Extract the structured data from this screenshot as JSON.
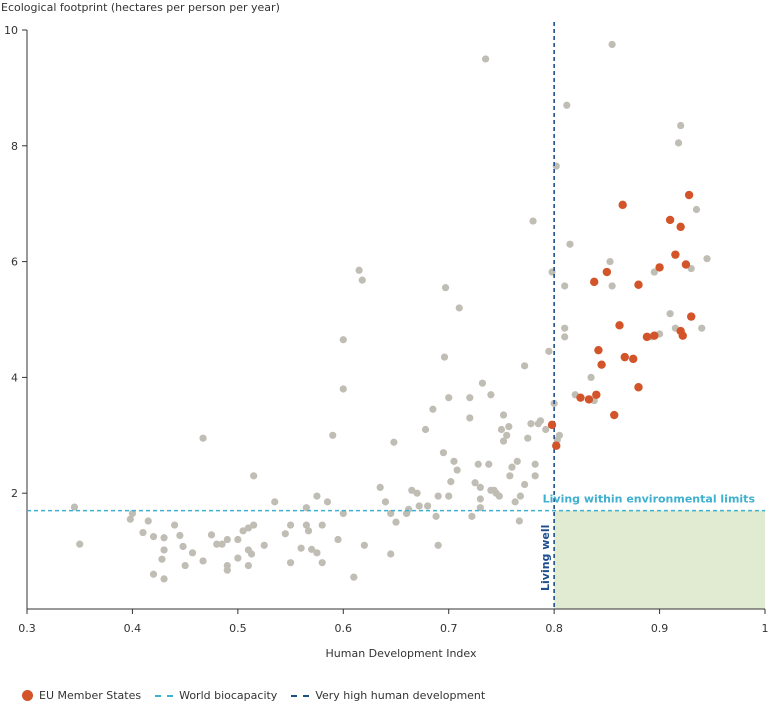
{
  "chart_data": {
    "type": "scatter",
    "ylabel": "Ecological footprint (hectares per person per year)",
    "xlabel": "Human Development Index",
    "xlim": [
      0.3,
      1.0
    ],
    "ylim": [
      0,
      10
    ],
    "x_ticks": [
      "0.3",
      "0.4",
      "0.5",
      "0.6",
      "0.7",
      "0.8",
      "0.9",
      "1"
    ],
    "y_ticks": [
      "2",
      "4",
      "6",
      "8",
      "10"
    ],
    "grid": false,
    "world_biocapacity": 1.7,
    "very_high_hdi": 0.8,
    "annotations": {
      "region_label": "Living within environmental limits",
      "living_well": "Living well"
    },
    "legend": {
      "eu": "EU Member States",
      "biocapacity": "World biocapacity",
      "very_high": "Very high human development"
    },
    "colors": {
      "other": "#bfbdb4",
      "eu": "#d4542a",
      "biocapacity_line": "#3fb0cf",
      "hdi_line": "#1e4f8c",
      "region_fill": "#e1ebd2"
    },
    "series": [
      {
        "name": "",
        "points": [
          [
            0.345,
            1.76
          ],
          [
            0.35,
            1.12
          ],
          [
            0.4,
            1.65
          ],
          [
            0.41,
            1.32
          ],
          [
            0.398,
            1.55
          ],
          [
            0.415,
            1.52
          ],
          [
            0.42,
            1.25
          ],
          [
            0.43,
            1.23
          ],
          [
            0.43,
            1.02
          ],
          [
            0.428,
            0.86
          ],
          [
            0.43,
            0.52
          ],
          [
            0.42,
            0.6
          ],
          [
            0.44,
            1.45
          ],
          [
            0.445,
            1.27
          ],
          [
            0.448,
            1.08
          ],
          [
            0.457,
            0.97
          ],
          [
            0.45,
            0.75
          ],
          [
            0.467,
            2.95
          ],
          [
            0.467,
            0.83
          ],
          [
            0.475,
            1.28
          ],
          [
            0.48,
            1.12
          ],
          [
            0.485,
            1.12
          ],
          [
            0.49,
            1.2
          ],
          [
            0.49,
            0.67
          ],
          [
            0.49,
            0.75
          ],
          [
            0.5,
            1.2
          ],
          [
            0.5,
            0.88
          ],
          [
            0.505,
            1.35
          ],
          [
            0.51,
            1.02
          ],
          [
            0.515,
            1.45
          ],
          [
            0.51,
            1.4
          ],
          [
            0.513,
            0.95
          ],
          [
            0.51,
            0.75
          ],
          [
            0.525,
            1.1
          ],
          [
            0.515,
            2.3
          ],
          [
            0.535,
            1.85
          ],
          [
            0.545,
            1.3
          ],
          [
            0.55,
            1.45
          ],
          [
            0.55,
            0.8
          ],
          [
            0.56,
            1.05
          ],
          [
            0.565,
            1.45
          ],
          [
            0.567,
            1.35
          ],
          [
            0.565,
            1.75
          ],
          [
            0.57,
            1.03
          ],
          [
            0.575,
            1.95
          ],
          [
            0.575,
            0.97
          ],
          [
            0.58,
            0.8
          ],
          [
            0.58,
            1.45
          ],
          [
            0.585,
            1.85
          ],
          [
            0.59,
            3.0
          ],
          [
            0.595,
            1.2
          ],
          [
            0.6,
            3.8
          ],
          [
            0.6,
            4.65
          ],
          [
            0.6,
            1.65
          ],
          [
            0.61,
            0.55
          ],
          [
            0.615,
            5.85
          ],
          [
            0.618,
            5.68
          ],
          [
            0.62,
            1.1
          ],
          [
            0.635,
            2.1
          ],
          [
            0.64,
            1.85
          ],
          [
            0.645,
            1.65
          ],
          [
            0.645,
            0.95
          ],
          [
            0.65,
            1.5
          ],
          [
            0.648,
            2.88
          ],
          [
            0.66,
            1.65
          ],
          [
            0.662,
            1.72
          ],
          [
            0.665,
            2.05
          ],
          [
            0.67,
            2.0
          ],
          [
            0.672,
            1.78
          ],
          [
            0.678,
            3.1
          ],
          [
            0.68,
            1.78
          ],
          [
            0.685,
            3.45
          ],
          [
            0.688,
            1.6
          ],
          [
            0.69,
            1.1
          ],
          [
            0.69,
            1.95
          ],
          [
            0.695,
            2.7
          ],
          [
            0.696,
            4.35
          ],
          [
            0.697,
            5.55
          ],
          [
            0.7,
            3.65
          ],
          [
            0.7,
            1.95
          ],
          [
            0.702,
            2.2
          ],
          [
            0.705,
            2.55
          ],
          [
            0.708,
            2.4
          ],
          [
            0.71,
            5.2
          ],
          [
            0.72,
            3.3
          ],
          [
            0.72,
            3.65
          ],
          [
            0.722,
            1.6
          ],
          [
            0.725,
            2.18
          ],
          [
            0.728,
            2.5
          ],
          [
            0.732,
            3.9
          ],
          [
            0.73,
            2.1
          ],
          [
            0.73,
            1.9
          ],
          [
            0.73,
            1.75
          ],
          [
            0.735,
            9.5
          ],
          [
            0.74,
            3.7
          ],
          [
            0.738,
            2.5
          ],
          [
            0.74,
            2.05
          ],
          [
            0.743,
            2.05
          ],
          [
            0.745,
            2.0
          ],
          [
            0.748,
            1.95
          ],
          [
            0.75,
            3.1
          ],
          [
            0.752,
            2.9
          ],
          [
            0.752,
            3.35
          ],
          [
            0.755,
            3.0
          ],
          [
            0.757,
            3.15
          ],
          [
            0.758,
            2.3
          ],
          [
            0.76,
            2.45
          ],
          [
            0.763,
            1.85
          ],
          [
            0.765,
            2.55
          ],
          [
            0.767,
            1.52
          ],
          [
            0.768,
            1.95
          ],
          [
            0.772,
            2.15
          ],
          [
            0.775,
            2.95
          ],
          [
            0.778,
            3.2
          ],
          [
            0.78,
            6.7
          ],
          [
            0.782,
            2.5
          ],
          [
            0.782,
            2.3
          ],
          [
            0.785,
            3.2
          ],
          [
            0.787,
            3.25
          ],
          [
            0.792,
            3.1
          ],
          [
            0.795,
            4.45
          ],
          [
            0.798,
            5.82
          ],
          [
            0.8,
            3.55
          ],
          [
            0.802,
            7.65
          ],
          [
            0.803,
            2.92
          ],
          [
            0.805,
            3.0
          ],
          [
            0.81,
            5.58
          ],
          [
            0.81,
            4.85
          ],
          [
            0.81,
            4.7
          ],
          [
            0.812,
            8.7
          ],
          [
            0.815,
            6.3
          ],
          [
            0.82,
            3.7
          ],
          [
            0.835,
            4.0
          ],
          [
            0.838,
            3.6
          ],
          [
            0.855,
            9.75
          ],
          [
            0.853,
            6.0
          ],
          [
            0.855,
            5.58
          ],
          [
            0.892,
            4.7
          ],
          [
            0.895,
            5.82
          ],
          [
            0.9,
            4.75
          ],
          [
            0.91,
            5.1
          ],
          [
            0.915,
            4.85
          ],
          [
            0.918,
            8.05
          ],
          [
            0.92,
            8.35
          ],
          [
            0.93,
            5.88
          ],
          [
            0.935,
            6.9
          ],
          [
            0.94,
            4.85
          ],
          [
            0.945,
            6.05
          ],
          [
            0.772,
            4.2
          ]
        ]
      },
      {
        "name": "EU Member States",
        "points": [
          [
            0.798,
            3.18
          ],
          [
            0.802,
            2.82
          ],
          [
            0.825,
            3.65
          ],
          [
            0.833,
            3.62
          ],
          [
            0.84,
            3.7
          ],
          [
            0.842,
            4.47
          ],
          [
            0.845,
            4.22
          ],
          [
            0.838,
            5.65
          ],
          [
            0.85,
            5.82
          ],
          [
            0.857,
            3.35
          ],
          [
            0.862,
            4.9
          ],
          [
            0.865,
            6.98
          ],
          [
            0.867,
            4.35
          ],
          [
            0.875,
            4.32
          ],
          [
            0.88,
            3.83
          ],
          [
            0.88,
            5.6
          ],
          [
            0.888,
            4.7
          ],
          [
            0.895,
            4.72
          ],
          [
            0.9,
            5.9
          ],
          [
            0.91,
            6.72
          ],
          [
            0.915,
            6.12
          ],
          [
            0.92,
            6.6
          ],
          [
            0.92,
            4.8
          ],
          [
            0.922,
            4.72
          ],
          [
            0.925,
            5.95
          ],
          [
            0.928,
            7.15
          ],
          [
            0.93,
            5.05
          ]
        ]
      }
    ]
  }
}
